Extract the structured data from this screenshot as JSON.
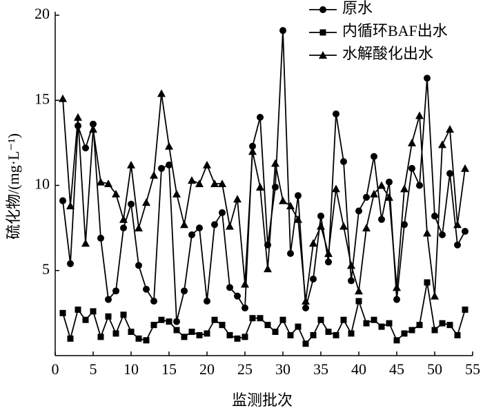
{
  "chart_data": {
    "type": "line",
    "x_label": "监测批次",
    "y_label": "硫化物/(mg·L⁻¹)",
    "x": [
      1,
      2,
      3,
      4,
      5,
      6,
      7,
      8,
      9,
      10,
      11,
      12,
      13,
      14,
      15,
      16,
      17,
      18,
      19,
      20,
      21,
      22,
      23,
      24,
      25,
      26,
      27,
      28,
      29,
      30,
      31,
      32,
      33,
      34,
      35,
      36,
      37,
      38,
      39,
      40,
      41,
      42,
      43,
      44,
      45,
      46,
      47,
      48,
      49,
      50,
      51,
      52,
      53,
      54
    ],
    "xlim": [
      0,
      55
    ],
    "xticks": [
      0,
      5,
      10,
      15,
      20,
      25,
      30,
      35,
      40,
      45,
      50,
      55
    ],
    "ylim": [
      0,
      20
    ],
    "yticks": [
      5,
      10,
      15,
      20
    ],
    "legend": "top-right",
    "series": [
      {
        "name": "原水",
        "marker": "circle",
        "color": "#000000",
        "values": [
          9.1,
          5.4,
          13.5,
          12.2,
          13.6,
          6.9,
          3.3,
          3.8,
          7.5,
          8.9,
          5.3,
          3.9,
          3.2,
          11.0,
          11.2,
          2.0,
          3.8,
          7.1,
          7.5,
          3.2,
          7.7,
          8.4,
          4.0,
          3.5,
          2.8,
          12.3,
          14.0,
          6.5,
          9.9,
          19.1,
          6.0,
          9.4,
          2.8,
          4.5,
          8.2,
          5.5,
          14.2,
          11.4,
          4.4,
          8.5,
          9.3,
          11.7,
          8.0,
          10.2,
          3.3,
          7.7,
          11.0,
          10.0,
          16.3,
          8.2,
          7.1,
          10.7,
          6.5,
          7.3
        ]
      },
      {
        "name": "内循环BAF出水",
        "marker": "square",
        "color": "#000000",
        "values": [
          2.5,
          1.0,
          2.7,
          2.1,
          2.6,
          1.1,
          2.3,
          1.3,
          2.4,
          1.4,
          1.0,
          0.9,
          1.8,
          2.1,
          2.0,
          1.5,
          1.1,
          1.4,
          1.2,
          1.3,
          2.1,
          1.8,
          1.2,
          1.0,
          1.1,
          2.2,
          2.2,
          1.8,
          1.4,
          2.1,
          1.2,
          1.7,
          0.7,
          1.2,
          2.1,
          1.4,
          1.2,
          2.1,
          1.3,
          3.2,
          1.9,
          2.1,
          1.7,
          1.9,
          0.9,
          1.3,
          1.5,
          1.8,
          4.3,
          1.5,
          1.9,
          1.8,
          1.2,
          2.7
        ]
      },
      {
        "name": "水解酸化出水",
        "marker": "triangle",
        "color": "#000000",
        "values": [
          15.1,
          8.8,
          14.0,
          6.6,
          13.3,
          10.2,
          10.1,
          9.5,
          8.0,
          11.2,
          7.5,
          9.0,
          10.6,
          15.4,
          12.3,
          9.5,
          7.7,
          10.3,
          10.1,
          11.2,
          10.1,
          10.1,
          7.6,
          9.2,
          4.2,
          12.0,
          9.9,
          5.1,
          11.3,
          9.1,
          8.8,
          8.0,
          3.2,
          6.6,
          7.6,
          6.0,
          9.8,
          7.6,
          5.3,
          3.8,
          7.5,
          9.5,
          10.0,
          9.3,
          4.0,
          9.8,
          12.5,
          14.1,
          7.2,
          3.5,
          12.4,
          13.3,
          7.7,
          11.0
        ]
      }
    ]
  }
}
